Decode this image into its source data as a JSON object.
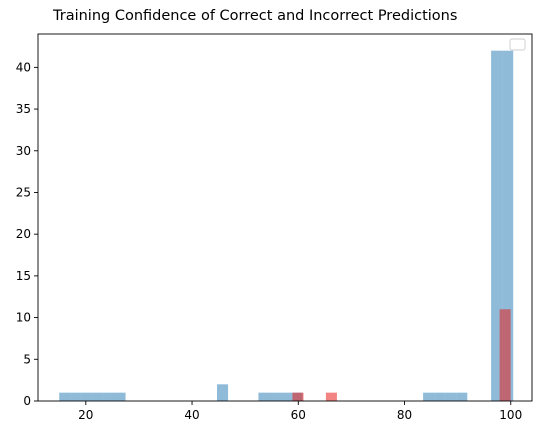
{
  "chart_data": {
    "type": "bar",
    "title": "Training Confidence of Correct and Incorrect Predictions",
    "xlabel": "",
    "ylabel": "",
    "xlim": [
      11,
      104
    ],
    "ylim": [
      0,
      44
    ],
    "x_ticks": [
      20,
      40,
      60,
      80,
      100
    ],
    "y_ticks": [
      0,
      5,
      10,
      15,
      20,
      25,
      30,
      35,
      40
    ],
    "grid": false,
    "legend": {
      "placement": "top-right",
      "entries": []
    },
    "bin_width": 2.08,
    "series": [
      {
        "color": "#1f77b4",
        "opacity": 0.5,
        "bins": [
          {
            "x": 15.0,
            "value": 1
          },
          {
            "x": 17.08,
            "value": 1
          },
          {
            "x": 19.16,
            "value": 1
          },
          {
            "x": 21.24,
            "value": 1
          },
          {
            "x": 23.32,
            "value": 1
          },
          {
            "x": 25.4,
            "value": 1
          },
          {
            "x": 44.7,
            "value": 2
          },
          {
            "x": 52.5,
            "value": 1
          },
          {
            "x": 54.58,
            "value": 1
          },
          {
            "x": 56.66,
            "value": 1
          },
          {
            "x": 58.74,
            "value": 1
          },
          {
            "x": 83.5,
            "value": 1
          },
          {
            "x": 85.58,
            "value": 1
          },
          {
            "x": 87.66,
            "value": 1
          },
          {
            "x": 89.74,
            "value": 1
          },
          {
            "x": 96.3,
            "value": 42
          },
          {
            "x": 98.38,
            "value": 42
          }
        ]
      },
      {
        "color": "#e8211f",
        "opacity": 0.55,
        "bins": [
          {
            "x": 58.9,
            "value": 1
          },
          {
            "x": 65.2,
            "value": 1
          },
          {
            "x": 97.9,
            "value": 11
          }
        ]
      }
    ]
  }
}
